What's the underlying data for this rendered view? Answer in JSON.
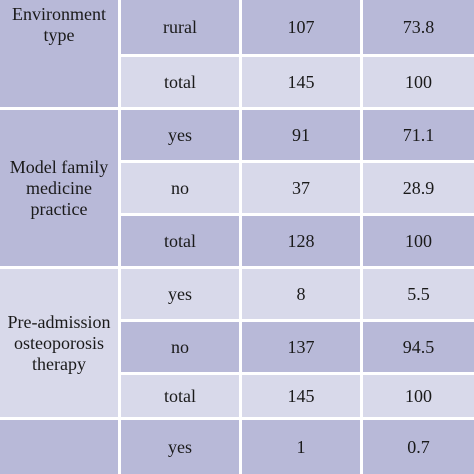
{
  "groups": [
    {
      "label": "Environment\ntype",
      "rows": [
        {
          "category": "rural",
          "n": "107",
          "pct": "73.8"
        },
        {
          "category": "total",
          "n": "145",
          "pct": "100"
        }
      ]
    },
    {
      "label": "Model family\nmedicine\npractice",
      "rows": [
        {
          "category": "yes",
          "n": "91",
          "pct": "71.1"
        },
        {
          "category": "no",
          "n": "37",
          "pct": "28.9"
        },
        {
          "category": "total",
          "n": "128",
          "pct": "100"
        }
      ]
    },
    {
      "label": "Pre-admission\nosteoporosis\ntherapy",
      "rows": [
        {
          "category": "yes",
          "n": "8",
          "pct": "5.5"
        },
        {
          "category": "no",
          "n": "137",
          "pct": "94.5"
        },
        {
          "category": "total",
          "n": "145",
          "pct": "100"
        }
      ]
    },
    {
      "label": "",
      "rows": [
        {
          "category": "yes",
          "n": "1",
          "pct": "0.7"
        }
      ]
    }
  ],
  "colors": {
    "row_dark": "#b8b9d8",
    "row_light": "#d8d9ea",
    "gap": "#ffffff",
    "text": "#1a1a1a"
  }
}
